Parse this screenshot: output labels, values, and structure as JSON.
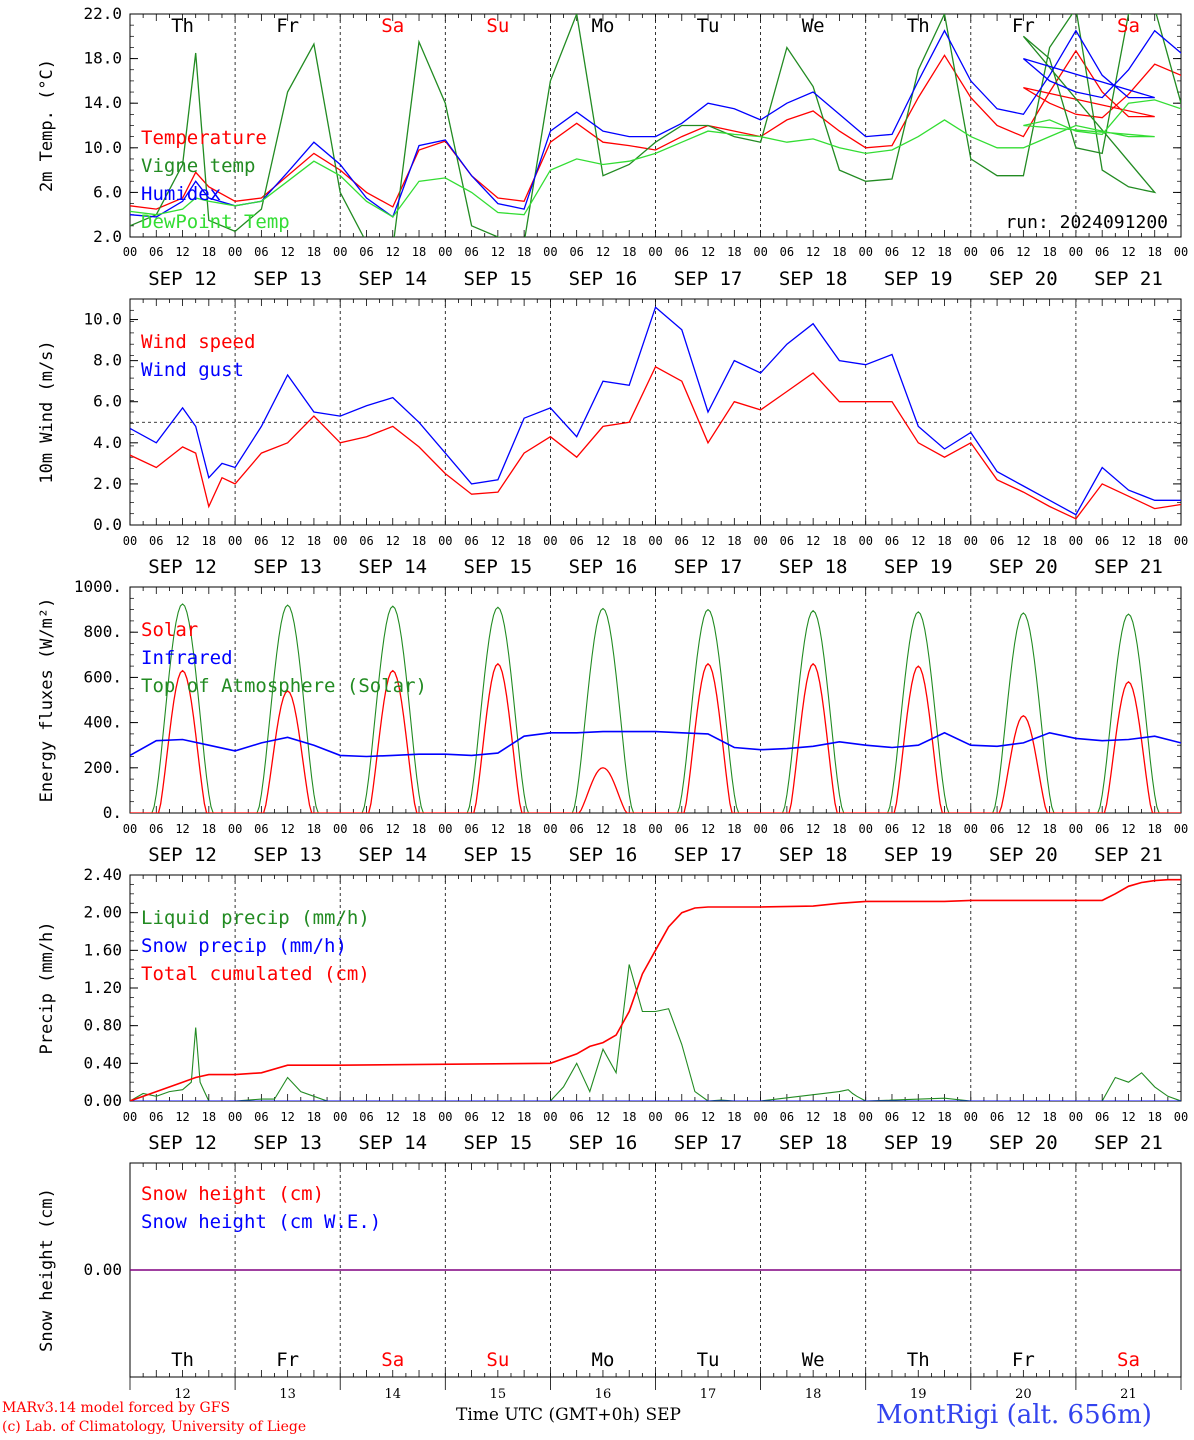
{
  "colors": {
    "red": "#ff0000",
    "green": "#228b22",
    "blue": "#0000ff",
    "lime": "#33dd33",
    "purple": "#800080",
    "axis": "#000000",
    "title": "#3344ee"
  },
  "x_axis": {
    "hour_labels": [
      "00",
      "06",
      "12",
      "18"
    ],
    "final_label": "00",
    "date_labels": [
      "SEP 12",
      "SEP 13",
      "SEP 14",
      "SEP 15",
      "SEP 16",
      "SEP 17",
      "SEP 18",
      "SEP 19",
      "SEP 20",
      "SEP 21"
    ],
    "day_names": [
      {
        "text": "Th",
        "weekend": false
      },
      {
        "text": "Fr",
        "weekend": false
      },
      {
        "text": "Sa",
        "weekend": true
      },
      {
        "text": "Su",
        "weekend": true
      },
      {
        "text": "Mo",
        "weekend": false
      },
      {
        "text": "Tu",
        "weekend": false
      },
      {
        "text": "We",
        "weekend": false
      },
      {
        "text": "Th",
        "weekend": false
      },
      {
        "text": "Fr",
        "weekend": false
      },
      {
        "text": "Sa",
        "weekend": true
      }
    ],
    "day_numbers": [
      "12",
      "13",
      "14",
      "15",
      "16",
      "17",
      "18",
      "19",
      "20",
      "21"
    ]
  },
  "chart_data": [
    {
      "type": "line",
      "ylabel": "2m Temp. (°C)",
      "ylim": [
        2.0,
        22.0
      ],
      "yticks": [
        "2.0",
        "6.0",
        "10.0",
        "14.0",
        "18.0",
        "22.0"
      ],
      "show_day_names": true,
      "annotation": "run: 2024091200",
      "x_unit": "hours since SEP 12 00 UTC",
      "series": [
        {
          "name": "Temperature",
          "color": "red",
          "x": [
            0,
            6,
            12,
            15,
            18,
            24,
            30,
            36,
            42,
            48,
            54,
            60,
            66,
            72,
            78,
            84,
            90,
            96,
            102,
            108,
            114,
            120,
            126,
            132,
            138,
            144,
            150,
            156,
            162,
            168,
            174,
            180,
            186,
            192,
            198,
            204,
            210,
            216,
            222,
            228,
            234
          ],
          "y": [
            4.8,
            4.5,
            5.5,
            7.8,
            6.5,
            5.2,
            5.5,
            7.5,
            9.5,
            8.0,
            6.0,
            4.7,
            9.8,
            10.6,
            7.5,
            5.5,
            5.2,
            10.5,
            12.2,
            10.5,
            10.2,
            9.8,
            11.0,
            12.0,
            11.5,
            11.0,
            12.5,
            13.3,
            11.5,
            10.0,
            10.2,
            14.5,
            18.3,
            14.5,
            12.0,
            11.0,
            15.0,
            18.7,
            15.0,
            12.8,
            12.8
          ],
          "y2": [
            14.2,
            15.4,
            14.0,
            13.0,
            12.7,
            14.8,
            17.5,
            16.5,
            14.0
          ]
        },
        {
          "name": "Vigne temp",
          "color": "green",
          "x": [
            0,
            6,
            12,
            15,
            18,
            24,
            30,
            36,
            42,
            48,
            54,
            60,
            66,
            72,
            78,
            84,
            90,
            96,
            102,
            108,
            114,
            120,
            126,
            132,
            138,
            144,
            150,
            156,
            162,
            168,
            174,
            180,
            186,
            192,
            198,
            204,
            210,
            216,
            222,
            228,
            234
          ],
          "y": [
            3.0,
            4.0,
            8.5,
            18.5,
            3.5,
            2.5,
            4.5,
            15.0,
            19.3,
            6.0,
            1.5,
            1.0,
            19.5,
            14.0,
            3.0,
            2.0,
            1.5,
            16.0,
            22.0,
            7.5,
            8.5,
            10.5,
            12.0,
            12.0,
            11.0,
            10.5,
            19.0,
            15.5,
            8.0,
            7.0,
            7.2,
            17.0,
            22.0,
            9.0,
            7.5,
            7.5,
            19.0,
            22.5,
            8.0,
            6.5,
            6.0
          ],
          "y2": [
            13.0,
            20.0,
            18.0,
            10.0,
            9.5,
            22.0,
            22.5,
            14.0,
            10.5
          ]
        },
        {
          "name": "Humidex",
          "color": "blue",
          "x": [
            0,
            6,
            12,
            15,
            18,
            24,
            30,
            36,
            42,
            48,
            54,
            60,
            66,
            72,
            78,
            84,
            90,
            96,
            102,
            108,
            114,
            120,
            126,
            132,
            138,
            144,
            150,
            156,
            162,
            168,
            174,
            180,
            186,
            192,
            198,
            204,
            210,
            216,
            222,
            228,
            234
          ],
          "y": [
            4.0,
            3.8,
            5.2,
            7.0,
            5.5,
            4.8,
            5.2,
            7.8,
            10.5,
            8.5,
            5.5,
            3.8,
            10.2,
            10.7,
            7.5,
            5.0,
            4.5,
            11.5,
            13.2,
            11.5,
            11.0,
            11.0,
            12.2,
            14.0,
            13.5,
            12.5,
            14.0,
            15.0,
            13.0,
            11.0,
            11.2,
            16.0,
            20.5,
            16.0,
            13.5,
            13.0,
            16.5,
            20.5,
            16.5,
            14.5,
            14.5
          ],
          "y2": [
            16.2,
            18.0,
            16.0,
            15.0,
            14.5,
            17.0,
            20.5,
            18.5,
            16.2
          ]
        },
        {
          "name": "DewPoint Temp",
          "color": "lime",
          "x": [
            0,
            6,
            12,
            15,
            18,
            24,
            30,
            36,
            42,
            48,
            54,
            60,
            66,
            72,
            78,
            84,
            90,
            96,
            102,
            108,
            114,
            120,
            126,
            132,
            138,
            144,
            150,
            156,
            162,
            168,
            174,
            180,
            186,
            192,
            198,
            204,
            210,
            216,
            222,
            228,
            234
          ],
          "y": [
            4.3,
            4.0,
            4.5,
            5.5,
            5.2,
            4.8,
            5.2,
            7.0,
            8.8,
            7.5,
            5.2,
            3.8,
            7.0,
            7.3,
            6.0,
            4.2,
            4.0,
            8.0,
            9.0,
            8.5,
            8.8,
            9.5,
            10.5,
            11.5,
            11.2,
            11.0,
            10.5,
            10.8,
            10.0,
            9.5,
            9.8,
            11.0,
            12.5,
            11.0,
            10.0,
            10.0,
            11.0,
            12.0,
            11.5,
            11.0,
            11.0
          ],
          "y2": [
            11.5,
            12.0,
            12.5,
            11.5,
            11.2,
            14.0,
            14.3,
            13.5,
            12.0
          ]
        }
      ],
      "x2": [
        198,
        204,
        210,
        216,
        222,
        228,
        234,
        240,
        246
      ],
      "legend_order": [
        "Temperature",
        "Vigne temp",
        "Humidex",
        "DewPoint Temp"
      ]
    },
    {
      "type": "line",
      "ylabel": "10m Wind (m/s)",
      "ylim": [
        0.0,
        11.0
      ],
      "yticks": [
        "0.0",
        "2.0",
        "4.0",
        "6.0",
        "8.0",
        "10.0"
      ],
      "ref_line": 5.0,
      "x_unit": "hours since SEP 12 00 UTC",
      "series": [
        {
          "name": "Wind speed",
          "color": "red",
          "x": [
            0,
            6,
            12,
            15,
            18,
            21,
            24,
            30,
            36,
            42,
            48,
            54,
            60,
            66,
            72,
            78,
            84,
            90,
            96,
            102,
            108,
            114,
            120,
            126,
            132,
            138,
            144,
            150,
            156,
            162,
            168,
            174,
            180,
            186,
            192,
            198,
            204,
            210,
            216,
            222,
            228,
            234,
            240
          ],
          "y": [
            3.4,
            2.8,
            3.8,
            3.5,
            0.9,
            2.3,
            2.0,
            3.5,
            4.0,
            5.3,
            4.0,
            4.3,
            4.8,
            3.8,
            2.5,
            1.5,
            1.6,
            3.5,
            4.3,
            3.3,
            4.8,
            5.0,
            7.7,
            7.0,
            4.0,
            6.0,
            5.6,
            6.5,
            7.4,
            6.0,
            6.0,
            6.0,
            4.0,
            3.3,
            4.0,
            2.2,
            1.6,
            0.9,
            0.3,
            2.0,
            1.4,
            0.8,
            1.0
          ]
        },
        {
          "name": "Wind gust",
          "color": "blue",
          "x": [
            0,
            6,
            12,
            15,
            18,
            21,
            24,
            30,
            36,
            42,
            48,
            54,
            60,
            66,
            72,
            78,
            84,
            90,
            96,
            102,
            108,
            114,
            120,
            126,
            132,
            138,
            144,
            150,
            156,
            162,
            168,
            174,
            180,
            186,
            192,
            198,
            204,
            210,
            216,
            222,
            228,
            234,
            240
          ],
          "y": [
            4.7,
            4.0,
            5.7,
            4.8,
            2.3,
            3.0,
            2.8,
            4.8,
            7.3,
            5.5,
            5.3,
            5.8,
            6.2,
            5.0,
            3.5,
            2.0,
            2.2,
            5.2,
            5.7,
            4.3,
            7.0,
            6.8,
            10.6,
            9.5,
            5.5,
            8.0,
            7.4,
            8.8,
            9.8,
            8.0,
            7.8,
            8.3,
            4.8,
            3.7,
            4.5,
            2.6,
            1.9,
            1.2,
            0.5,
            2.8,
            1.7,
            1.2,
            1.2
          ]
        }
      ],
      "legend_order": [
        "Wind speed",
        "Wind gust"
      ]
    },
    {
      "type": "line",
      "ylabel": "Energy fluxes (W/m²)",
      "ylim": [
        0,
        1000
      ],
      "yticks": [
        "0.",
        "200.",
        "400.",
        "600.",
        "800.",
        "1000."
      ],
      "x_unit": "hours since SEP 12 00 UTC",
      "toa_peaks": [
        925,
        920,
        915,
        910,
        905,
        900,
        895,
        890,
        885,
        880
      ],
      "solar_peaks": [
        630,
        540,
        630,
        660,
        200,
        660,
        660,
        650,
        430,
        580
      ],
      "infrared": {
        "x": [
          0,
          6,
          12,
          18,
          24,
          30,
          36,
          42,
          48,
          54,
          60,
          66,
          72,
          78,
          84,
          90,
          96,
          102,
          108,
          114,
          120,
          126,
          132,
          138,
          144,
          150,
          156,
          162,
          168,
          174,
          180,
          186,
          192,
          198,
          204,
          210,
          216,
          222,
          228,
          234,
          240
        ],
        "y": [
          255,
          320,
          325,
          300,
          275,
          310,
          335,
          300,
          255,
          250,
          255,
          260,
          260,
          255,
          265,
          340,
          355,
          355,
          360,
          360,
          360,
          355,
          350,
          290,
          280,
          285,
          295,
          315,
          300,
          290,
          300,
          355,
          300,
          295,
          310,
          355,
          330,
          320,
          325,
          340,
          310
        ]
      },
      "series": [
        {
          "name": "Solar",
          "color": "red"
        },
        {
          "name": "Infrared",
          "color": "blue"
        },
        {
          "name": "Top of Atmosphere (Solar)",
          "color": "green"
        }
      ],
      "legend_order": [
        "Solar",
        "Infrared",
        "Top of Atmosphere (Solar)"
      ]
    },
    {
      "type": "line",
      "ylabel": "Precip (mm/h)",
      "ylim": [
        0.0,
        2.4
      ],
      "yticks": [
        "0.00",
        "0.40",
        "0.80",
        "1.20",
        "1.60",
        "2.00",
        "2.40"
      ],
      "x_unit": "hours since SEP 12 00 UTC",
      "series": [
        {
          "name": "Liquid precip (mm/h)",
          "color": "green",
          "x": [
            0,
            3,
            6,
            9,
            12,
            14,
            15,
            16,
            17,
            18,
            24,
            30,
            33,
            36,
            39,
            42,
            45,
            48,
            96,
            99,
            102,
            105,
            108,
            111,
            114,
            117,
            120,
            123,
            126,
            129,
            132,
            135,
            138,
            141,
            144,
            162,
            164,
            165,
            166,
            168,
            186,
            192,
            198,
            204,
            222,
            225,
            228,
            231,
            234,
            237,
            240
          ],
          "y": [
            0,
            0.08,
            0.05,
            0.1,
            0.12,
            0.2,
            0.78,
            0.2,
            0.1,
            0,
            0,
            0.02,
            0.02,
            0.25,
            0.1,
            0.05,
            0,
            0,
            0,
            0.15,
            0.4,
            0.1,
            0.55,
            0.3,
            1.45,
            0.95,
            0.95,
            0.98,
            0.6,
            0.1,
            0,
            0.01,
            0,
            0,
            0,
            0.1,
            0.12,
            0.08,
            0.05,
            0,
            0.03,
            0,
            0,
            0,
            0,
            0.25,
            0.2,
            0.3,
            0.15,
            0.05,
            0
          ]
        },
        {
          "name": "Snow precip (mm/h)",
          "color": "blue",
          "x": [
            0,
            240
          ],
          "y": [
            0,
            0
          ]
        },
        {
          "name": "Total cumulated (cm)",
          "color": "red",
          "x": [
            0,
            6,
            12,
            15,
            18,
            24,
            30,
            36,
            42,
            48,
            96,
            102,
            105,
            108,
            111,
            114,
            117,
            120,
            123,
            126,
            129,
            132,
            138,
            144,
            156,
            162,
            168,
            186,
            192,
            198,
            204,
            216,
            222,
            225,
            228,
            231,
            234,
            237,
            240
          ],
          "y": [
            0,
            0.1,
            0.2,
            0.25,
            0.28,
            0.28,
            0.3,
            0.38,
            0.38,
            0.38,
            0.4,
            0.5,
            0.58,
            0.62,
            0.7,
            0.95,
            1.35,
            1.6,
            1.85,
            2.0,
            2.05,
            2.06,
            2.06,
            2.06,
            2.07,
            2.1,
            2.12,
            2.12,
            2.13,
            2.13,
            2.13,
            2.13,
            2.13,
            2.2,
            2.28,
            2.32,
            2.34,
            2.35,
            2.35
          ]
        }
      ],
      "legend_order": [
        "Liquid precip (mm/h)",
        "Snow precip (mm/h)",
        "Total cumulated (cm)"
      ]
    },
    {
      "type": "line",
      "ylabel": "Snow height (cm)",
      "yticks": [
        "0.00"
      ],
      "x_unit": "hours since SEP 12 00 UTC",
      "series": [
        {
          "name": "Snow height (cm)",
          "color": "red",
          "x": [
            0,
            240
          ],
          "y": [
            0,
            0
          ]
        },
        {
          "name": "Snow height (cm W.E.)",
          "color": "blue",
          "x": [
            0,
            240
          ],
          "y": [
            0,
            0
          ]
        }
      ],
      "legend_order": [
        "Snow height (cm)",
        "Snow height (cm W.E.)"
      ]
    }
  ],
  "footer": {
    "model_line1": "MARv3.14 model forced by GFS",
    "model_line2": "(c) Lab. of Climatology, University of Liege",
    "time_axis_label": "Time UTC (GMT+0h)",
    "month_label": "SEP",
    "station": "MontRigi (alt. 656m)"
  }
}
